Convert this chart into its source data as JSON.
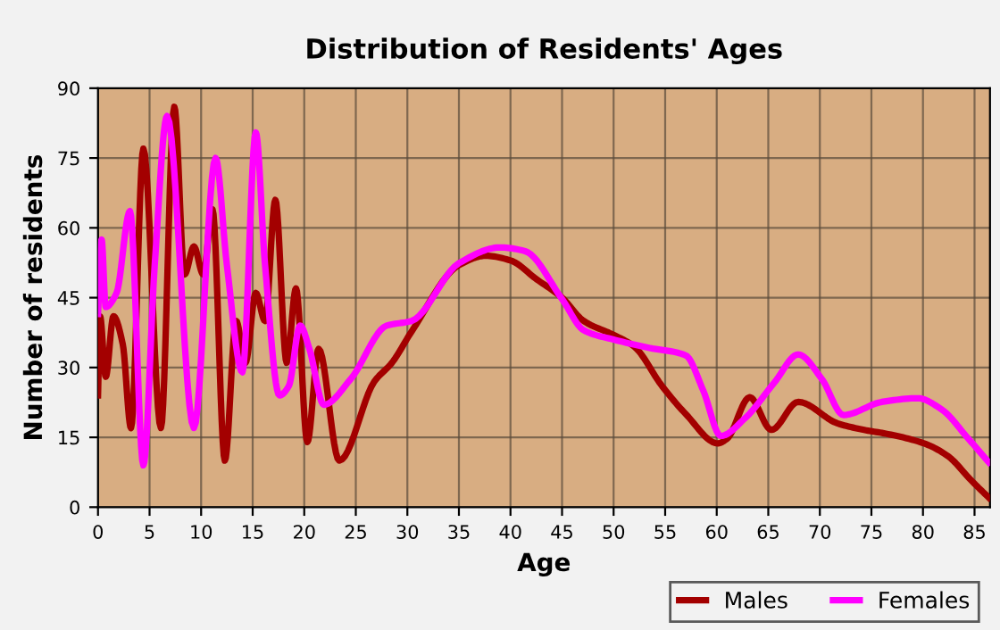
{
  "chart_data": {
    "type": "line",
    "title": "Distribution of Residents' Ages",
    "xlabel": "Age",
    "ylabel": "Number of residents",
    "xlim": [
      0,
      86.5
    ],
    "xticks": [
      0,
      5,
      10,
      15,
      20,
      25,
      30,
      35,
      40,
      45,
      50,
      55,
      60,
      65,
      70,
      75,
      80,
      85
    ],
    "ylim": [
      0,
      90
    ],
    "yticks": [
      0,
      15,
      30,
      45,
      60,
      75,
      90
    ],
    "grid": true,
    "legend": "bottom right",
    "line_style": "solid",
    "marker": "none",
    "series": [
      {
        "name": "Males",
        "color": "#a30000",
        "x": [
          0,
          0.2,
          0.75,
          1.5,
          2.4,
          3.2,
          4.4,
          6.1,
          7.4,
          8.4,
          9.3,
          10.2,
          11.1,
          12.3,
          13.4,
          14.3,
          15.3,
          16.2,
          17.2,
          18.3,
          19.2,
          20.3,
          21.4,
          23.4,
          26.8,
          28.5,
          30.4,
          35,
          37.6,
          40,
          42.5,
          45,
          47.1,
          50,
          52,
          54.7,
          57,
          60.1,
          61,
          63.2,
          65.3,
          67.9,
          71.7,
          74.3,
          76.6,
          80.1,
          82.4,
          84.7,
          86.4
        ],
        "values": [
          24,
          41,
          28,
          41,
          35,
          17,
          77,
          17,
          86,
          50,
          56,
          50,
          64,
          10,
          40,
          31,
          46,
          40,
          66,
          31,
          47,
          14,
          34,
          10,
          27,
          31,
          37.7,
          52,
          54,
          53,
          49,
          45,
          40,
          37,
          34.5,
          26,
          20,
          13.7,
          14.7,
          23.6,
          16.6,
          22.6,
          18,
          16.6,
          15.7,
          13.7,
          11,
          5.7,
          2
        ]
      },
      {
        "name": "Females",
        "color": "#ff00ff",
        "x": [
          0,
          0.35,
          0.75,
          1.8,
          3.1,
          4.4,
          5.5,
          6.7,
          9.3,
          11.4,
          12.5,
          14,
          15.3,
          16.2,
          17.6,
          18.5,
          19.6,
          20.5,
          21.9,
          24.5,
          28,
          30.4,
          35,
          39,
          41.4,
          45,
          47.1,
          50,
          53.5,
          57,
          58.7,
          60.4,
          62.7,
          65.6,
          67.9,
          70.2,
          72.3,
          76,
          79.5,
          81.8,
          84.4,
          86.4
        ],
        "values": [
          41.5,
          57.5,
          43,
          46,
          63.6,
          9,
          52,
          84,
          17,
          75,
          52,
          29,
          80.5,
          52,
          24,
          26,
          39,
          34,
          22,
          27.5,
          39,
          40,
          52.4,
          55.8,
          55,
          44.7,
          38,
          36,
          34.2,
          32.6,
          25,
          15.3,
          19,
          26.8,
          32.8,
          27.5,
          19.8,
          22.6,
          23.4,
          21,
          14.7,
          9.6
        ]
      }
    ]
  }
}
